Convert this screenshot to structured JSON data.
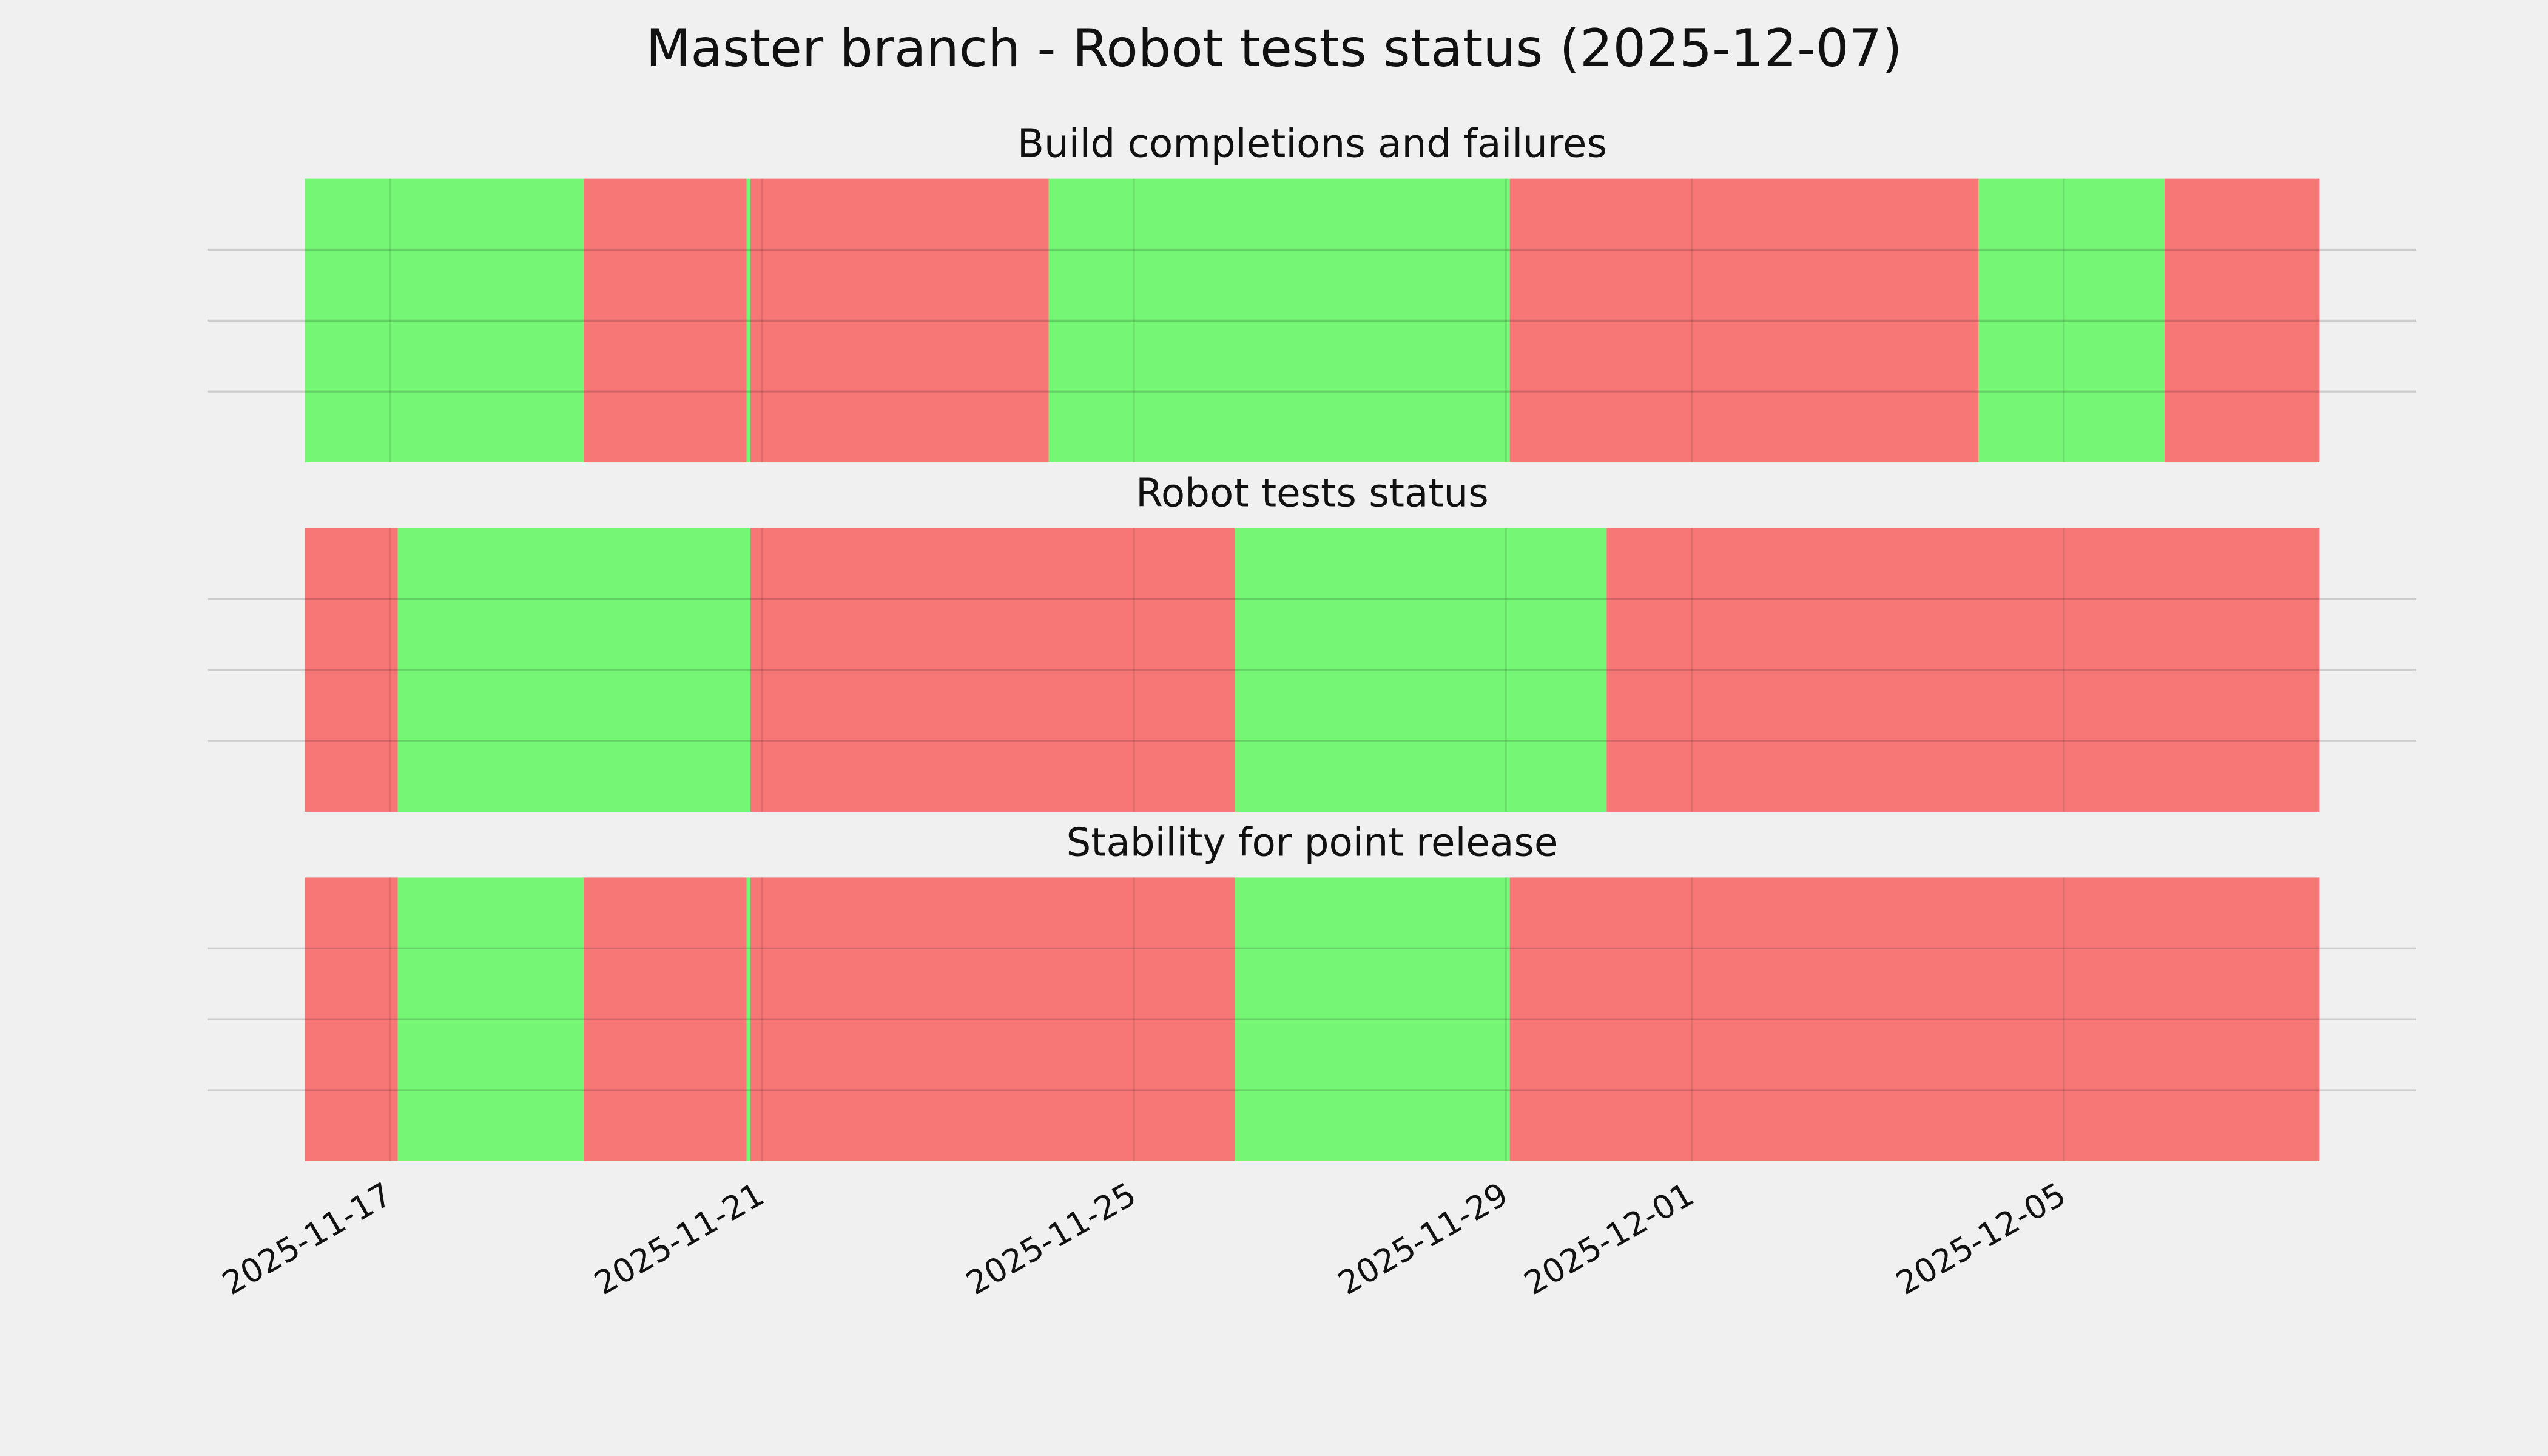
{
  "chart_data": {
    "type": "timeline-spans",
    "title": "Master branch - Robot tests status (2025-12-07)",
    "xlim": [
      "2025-11-15T01:00",
      "2025-12-08T19:00"
    ],
    "xticks": [
      "2025-11-17",
      "2025-11-21",
      "2025-11-25",
      "2025-11-29",
      "2025-12-01",
      "2025-12-05"
    ],
    "ylim": [
      0,
      1
    ],
    "yticks": [
      0.25,
      0.5,
      0.75
    ],
    "ytick_labels_visible": false,
    "grid": true,
    "panels": [
      {
        "title": "Build completions and failures",
        "spans": [
          {
            "start": "2025-11-16T02:00",
            "end": "2025-11-19T02:00",
            "color": "#75f775"
          },
          {
            "start": "2025-11-19T02:00",
            "end": "2025-11-20T20:00",
            "color": "#f77777"
          },
          {
            "start": "2025-11-20T20:00",
            "end": "2025-11-20T21:00",
            "color": "#75f775"
          },
          {
            "start": "2025-11-20T21:00",
            "end": "2025-11-24T02:00",
            "color": "#f77777"
          },
          {
            "start": "2025-11-24T02:00",
            "end": "2025-11-29T01:00",
            "color": "#75f775"
          },
          {
            "start": "2025-11-29T01:00",
            "end": "2025-12-04T02:00",
            "color": "#f77777"
          },
          {
            "start": "2025-12-04T02:00",
            "end": "2025-12-06T02:00",
            "color": "#75f775"
          },
          {
            "start": "2025-12-06T02:00",
            "end": "2025-12-07T18:00",
            "color": "#f77777"
          }
        ]
      },
      {
        "title": "Robot tests status",
        "spans": [
          {
            "start": "2025-11-16T02:00",
            "end": "2025-11-17T02:00",
            "color": "#f77777"
          },
          {
            "start": "2025-11-17T02:00",
            "end": "2025-11-20T21:00",
            "color": "#75f775"
          },
          {
            "start": "2025-11-20T21:00",
            "end": "2025-11-26T02:00",
            "color": "#f77777"
          },
          {
            "start": "2025-11-26T02:00",
            "end": "2025-11-30T02:00",
            "color": "#75f775"
          },
          {
            "start": "2025-11-30T02:00",
            "end": "2025-12-07T18:00",
            "color": "#f77777"
          }
        ]
      },
      {
        "title": "Stability for point release",
        "spans": [
          {
            "start": "2025-11-16T02:00",
            "end": "2025-11-17T02:00",
            "color": "#f77777"
          },
          {
            "start": "2025-11-17T02:00",
            "end": "2025-11-19T02:00",
            "color": "#75f775"
          },
          {
            "start": "2025-11-19T02:00",
            "end": "2025-11-20T20:00",
            "color": "#f77777"
          },
          {
            "start": "2025-11-20T20:00",
            "end": "2025-11-20T21:00",
            "color": "#75f775"
          },
          {
            "start": "2025-11-20T21:00",
            "end": "2025-11-26T02:00",
            "color": "#f77777"
          },
          {
            "start": "2025-11-26T02:00",
            "end": "2025-11-29T01:00",
            "color": "#75f775"
          },
          {
            "start": "2025-11-29T01:00",
            "end": "2025-12-07T18:00",
            "color": "#f77777"
          }
        ]
      }
    ]
  }
}
